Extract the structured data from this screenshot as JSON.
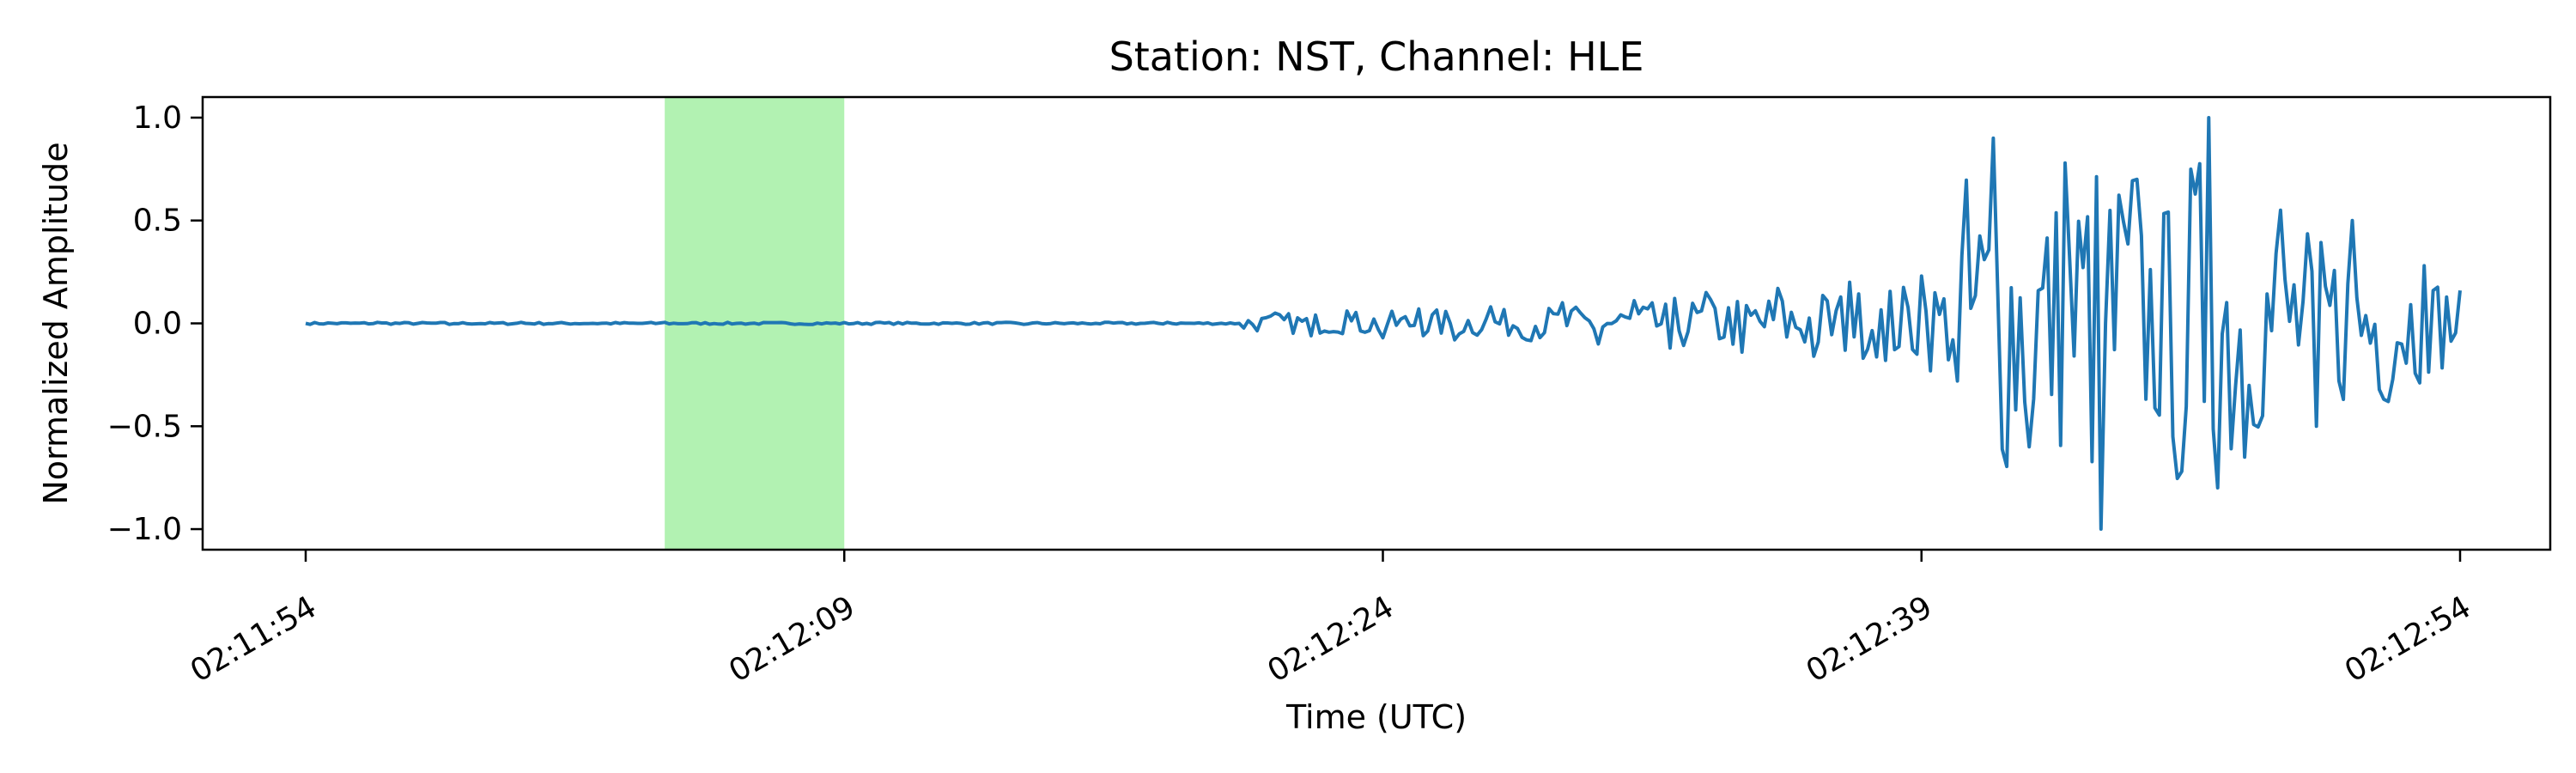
{
  "chart_data": {
    "type": "line",
    "title": "Station: NST, Channel: HLE",
    "xlabel": "Time (UTC)",
    "ylabel": "Normalized Amplitude",
    "x_start": "02:11:54",
    "x_end": "02:12:54",
    "x_ticks": [
      {
        "t": 0,
        "label": "02:11:54"
      },
      {
        "t": 15,
        "label": "02:12:09"
      },
      {
        "t": 30,
        "label": "02:12:24"
      },
      {
        "t": 45,
        "label": "02:12:39"
      },
      {
        "t": 60,
        "label": "02:12:54"
      }
    ],
    "ylim": [
      -1.1,
      1.1
    ],
    "y_ticks": [
      {
        "v": 1.0,
        "label": "1.0"
      },
      {
        "v": 0.5,
        "label": "0.5"
      },
      {
        "v": 0.0,
        "label": "0.0"
      },
      {
        "v": -0.5,
        "label": "−0.5"
      },
      {
        "v": -1.0,
        "label": "−1.0"
      }
    ],
    "grid": false,
    "highlight_span": {
      "start": "02:12:04",
      "end": "02:12:09",
      "color": "#b2f2b2"
    },
    "series": [
      {
        "color": "#1f77b4",
        "x": [
          "02:11:54",
          "02:11:56",
          "02:11:58",
          "02:12:00",
          "02:12:02",
          "02:12:04",
          "02:12:06",
          "02:12:08",
          "02:12:10",
          "02:12:12",
          "02:12:14",
          "02:12:16",
          "02:12:18",
          "02:12:20",
          "02:12:21",
          "02:12:22",
          "02:12:23",
          "02:12:24",
          "02:12:25",
          "02:12:26",
          "02:12:27",
          "02:12:28",
          "02:12:29",
          "02:12:30",
          "02:12:31",
          "02:12:32",
          "02:12:33",
          "02:12:34",
          "02:12:35",
          "02:12:36",
          "02:12:37",
          "02:12:38",
          "02:12:39",
          "02:12:40",
          "02:12:41",
          "02:12:42",
          "02:12:43",
          "02:12:44",
          "02:12:45",
          "02:12:46",
          "02:12:47",
          "02:12:48",
          "02:12:49",
          "02:12:50",
          "02:12:51",
          "02:12:52",
          "02:12:53",
          "02:12:54"
        ],
        "y": [
          0.0,
          0.005,
          -0.005,
          0.005,
          0.0,
          0.005,
          0.0,
          -0.005,
          0.005,
          0.0,
          -0.005,
          0.0,
          0.005,
          0.0,
          0.05,
          -0.06,
          0.06,
          -0.07,
          0.07,
          -0.08,
          0.08,
          -0.08,
          0.1,
          -0.1,
          0.11,
          -0.12,
          0.15,
          -0.14,
          0.17,
          -0.16,
          0.2,
          -0.18,
          0.23,
          -0.28,
          0.9,
          -0.6,
          0.78,
          -1.0,
          0.7,
          -0.55,
          1.0,
          -0.65,
          0.55,
          -0.5,
          0.5,
          -0.38,
          0.28,
          0.16
        ]
      }
    ]
  }
}
